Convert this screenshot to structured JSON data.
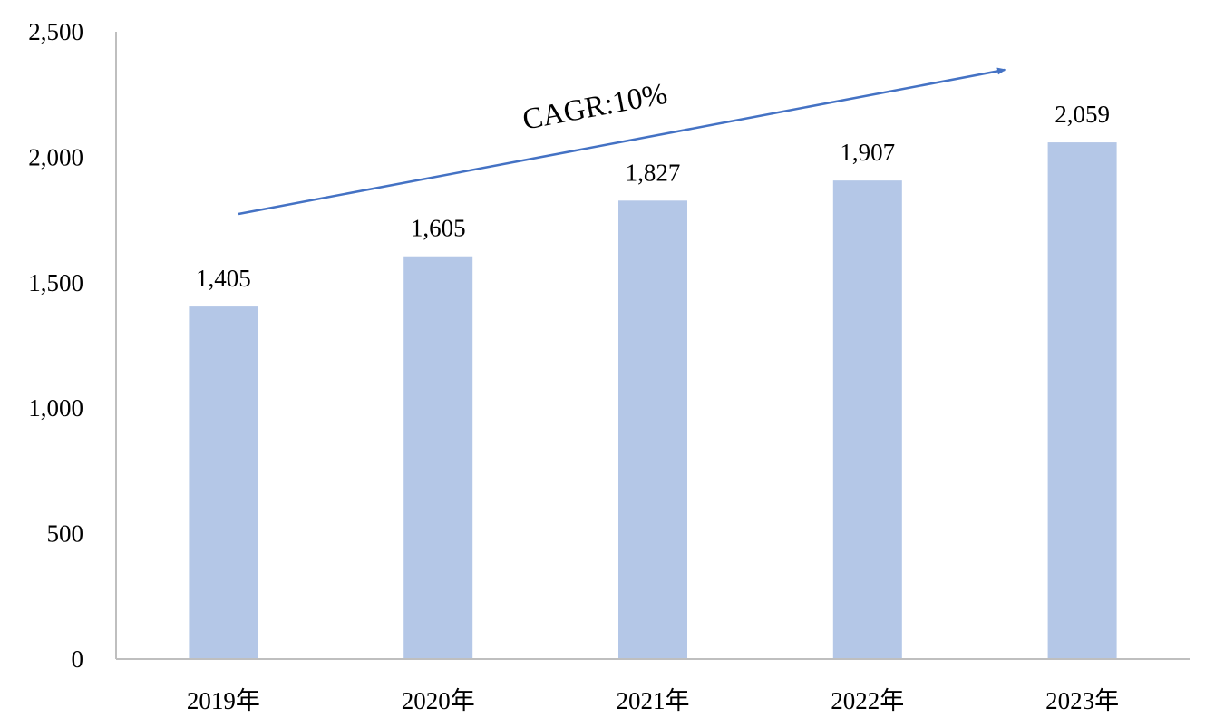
{
  "chart_data": {
    "type": "bar",
    "title": "",
    "xlabel": "",
    "ylabel": "",
    "categories": [
      "2019年",
      "2020年",
      "2021年",
      "2022年",
      "2023年"
    ],
    "values": [
      1405,
      1605,
      1827,
      1907,
      2059
    ],
    "value_labels": [
      "1,405",
      "1,605",
      "1,827",
      "1,907",
      "2,059"
    ],
    "ylim": [
      0,
      2500
    ],
    "yticks": [
      0,
      500,
      1000,
      1500,
      2000,
      2500
    ],
    "ytick_labels": [
      "0",
      "500",
      "1,000",
      "1,500",
      "2,000",
      "2,500"
    ],
    "grid": false,
    "legend": "none",
    "bar_color": "#b4c7e7",
    "annotation": {
      "text": "CAGR:10%",
      "kind": "arrow",
      "color": "#4472c4"
    }
  }
}
